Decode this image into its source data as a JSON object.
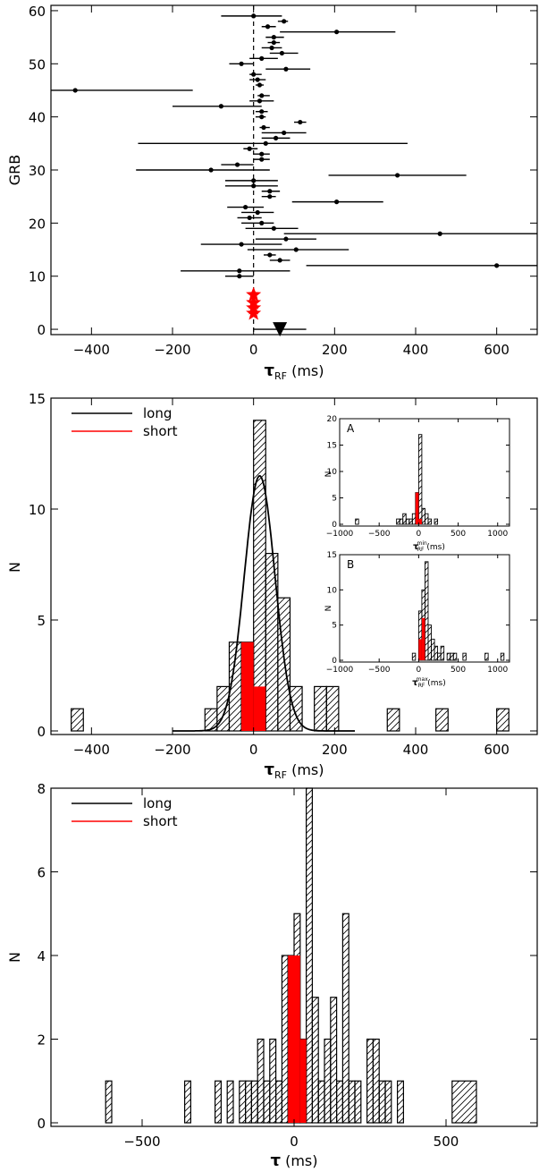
{
  "colors": {
    "long": "#000000",
    "short": "#ff0000",
    "frame": "#000000"
  },
  "chart_data": [
    {
      "id": "panel1",
      "type": "scatter",
      "xlabel_main": "τ",
      "xlabel_sub": "RF",
      "xlabel_unit": " (ms)",
      "ylabel": "GRB",
      "xlim": [
        -500,
        700
      ],
      "ylim": [
        -1,
        61
      ],
      "xticks": [
        -400,
        -200,
        0,
        200,
        400,
        600
      ],
      "yticks": [
        0,
        10,
        20,
        30,
        40,
        50,
        60
      ],
      "zero_line": "dashed",
      "long_points": [
        {
          "y": 59,
          "x": 0,
          "lo": -80,
          "hi": 70
        },
        {
          "y": 58,
          "x": 75,
          "lo": 60,
          "hi": 85
        },
        {
          "y": 57,
          "x": 35,
          "lo": 20,
          "hi": 55
        },
        {
          "y": 56,
          "x": 205,
          "lo": 65,
          "hi": 350
        },
        {
          "y": 55,
          "x": 50,
          "lo": 30,
          "hi": 75
        },
        {
          "y": 54,
          "x": 50,
          "lo": 35,
          "hi": 65
        },
        {
          "y": 53,
          "x": 45,
          "lo": 20,
          "hi": 70
        },
        {
          "y": 52,
          "x": 70,
          "lo": 40,
          "hi": 110
        },
        {
          "y": 51,
          "x": 20,
          "lo": -10,
          "hi": 60
        },
        {
          "y": 50,
          "x": -30,
          "lo": -60,
          "hi": 0
        },
        {
          "y": 49,
          "x": 80,
          "lo": 30,
          "hi": 140
        },
        {
          "y": 48,
          "x": 0,
          "lo": -10,
          "hi": 20
        },
        {
          "y": 47,
          "x": 10,
          "lo": -10,
          "hi": 30
        },
        {
          "y": 46,
          "x": 15,
          "lo": 5,
          "hi": 25
        },
        {
          "y": 45,
          "x": -440,
          "lo": -720,
          "hi": -150
        },
        {
          "y": 44,
          "x": 20,
          "lo": 10,
          "hi": 40
        },
        {
          "y": 43,
          "x": 15,
          "lo": -10,
          "hi": 50
        },
        {
          "y": 42,
          "x": -80,
          "lo": -200,
          "hi": 20
        },
        {
          "y": 41,
          "x": 20,
          "lo": 5,
          "hi": 35
        },
        {
          "y": 40,
          "x": 20,
          "lo": 5,
          "hi": 30
        },
        {
          "y": 39,
          "x": 115,
          "lo": 100,
          "hi": 130
        },
        {
          "y": 38,
          "x": 25,
          "lo": 15,
          "hi": 40
        },
        {
          "y": 37,
          "x": 75,
          "lo": 20,
          "hi": 130
        },
        {
          "y": 36,
          "x": 55,
          "lo": 20,
          "hi": 90
        },
        {
          "y": 35,
          "x": 30,
          "lo": -285,
          "hi": 380
        },
        {
          "y": 34,
          "x": -10,
          "lo": -25,
          "hi": 10
        },
        {
          "y": 33,
          "x": 20,
          "lo": 0,
          "hi": 40
        },
        {
          "y": 32,
          "x": 20,
          "lo": 0,
          "hi": 40
        },
        {
          "y": 31,
          "x": -40,
          "lo": -80,
          "hi": 0
        },
        {
          "y": 30,
          "x": -105,
          "lo": -290,
          "hi": 40
        },
        {
          "y": 29,
          "x": 355,
          "lo": 185,
          "hi": 525
        },
        {
          "y": 28,
          "x": 0,
          "lo": -70,
          "hi": 60
        },
        {
          "y": 27,
          "x": 0,
          "lo": -70,
          "hi": 60
        },
        {
          "y": 26,
          "x": 40,
          "lo": 20,
          "hi": 65
        },
        {
          "y": 25,
          "x": 40,
          "lo": 20,
          "hi": 55
        },
        {
          "y": 24,
          "x": 205,
          "lo": 95,
          "hi": 320
        },
        {
          "y": 23,
          "x": -20,
          "lo": -65,
          "hi": 25
        },
        {
          "y": 22,
          "x": 10,
          "lo": -30,
          "hi": 50
        },
        {
          "y": 21,
          "x": -10,
          "lo": -40,
          "hi": 20
        },
        {
          "y": 20,
          "x": 20,
          "lo": -30,
          "hi": 50
        },
        {
          "y": 19,
          "x": 50,
          "lo": -20,
          "hi": 110
        },
        {
          "y": 18,
          "x": 460,
          "lo": 75,
          "hi": 700
        },
        {
          "y": 17,
          "x": 80,
          "lo": 5,
          "hi": 155
        },
        {
          "y": 16,
          "x": -30,
          "lo": -130,
          "hi": 70
        },
        {
          "y": 15,
          "x": 105,
          "lo": -15,
          "hi": 235
        },
        {
          "y": 14,
          "x": 40,
          "lo": 25,
          "hi": 55
        },
        {
          "y": 13,
          "x": 65,
          "lo": 40,
          "hi": 90
        },
        {
          "y": 12,
          "x": 600,
          "lo": 130,
          "hi": 700
        },
        {
          "y": 11,
          "x": -35,
          "lo": -180,
          "hi": 90
        },
        {
          "y": 10,
          "x": -35,
          "lo": -70,
          "hi": 0
        }
      ],
      "short_points": [
        {
          "y": 6.5,
          "x": 0
        },
        {
          "y": 5,
          "x": 0
        },
        {
          "y": 4,
          "x": 0
        },
        {
          "y": 3,
          "x": 0
        }
      ],
      "arrow": {
        "y": 0,
        "x": 65,
        "lo": 0,
        "hi": 130
      }
    },
    {
      "id": "panel2",
      "type": "bar",
      "xlabel_main": "τ",
      "xlabel_sub": "RF",
      "xlabel_unit": " (ms)",
      "ylabel": "N",
      "xlim": [
        -500,
        700
      ],
      "ylim": [
        0,
        15
      ],
      "xticks": [
        -400,
        -200,
        0,
        200,
        400,
        600
      ],
      "yticks": [
        0,
        5,
        10,
        15
      ],
      "legend": [
        {
          "label": "long"
        },
        {
          "label": "short"
        }
      ],
      "long_bins": [
        {
          "x0": -450,
          "x1": -420,
          "n": 1
        },
        {
          "x0": -120,
          "x1": -90,
          "n": 1
        },
        {
          "x0": -90,
          "x1": -60,
          "n": 2
        },
        {
          "x0": -60,
          "x1": -30,
          "n": 4
        },
        {
          "x0": -30,
          "x1": 0,
          "n": 4
        },
        {
          "x0": 0,
          "x1": 30,
          "n": 14
        },
        {
          "x0": 30,
          "x1": 60,
          "n": 8
        },
        {
          "x0": 60,
          "x1": 90,
          "n": 6
        },
        {
          "x0": 90,
          "x1": 120,
          "n": 2
        },
        {
          "x0": 150,
          "x1": 180,
          "n": 2
        },
        {
          "x0": 180,
          "x1": 210,
          "n": 2
        },
        {
          "x0": 330,
          "x1": 360,
          "n": 1
        },
        {
          "x0": 450,
          "x1": 480,
          "n": 1
        },
        {
          "x0": 600,
          "x1": 630,
          "n": 1
        }
      ],
      "short_bins": [
        {
          "x0": -30,
          "x1": 0,
          "n": 4
        },
        {
          "x0": 0,
          "x1": 30,
          "n": 2
        }
      ],
      "gauss": {
        "mu": 15,
        "sigma": 38,
        "amp": 11.5
      },
      "insets": [
        {
          "id": "A",
          "label": "A",
          "xmain": "τ",
          "xsub": "RF",
          "xsup": "min",
          "xunit": " (ms)",
          "ylabel": "N",
          "xlim": [
            -1000,
            1150
          ],
          "ylim": [
            0,
            20
          ],
          "xticks": [
            -1000,
            -500,
            0,
            500,
            1000
          ],
          "yticks": [
            0,
            5,
            10,
            15,
            20
          ],
          "long_bins": [
            {
              "x0": -800,
              "x1": -760,
              "n": 1
            },
            {
              "x0": -280,
              "x1": -240,
              "n": 1
            },
            {
              "x0": -240,
              "x1": -200,
              "n": 1
            },
            {
              "x0": -200,
              "x1": -160,
              "n": 2
            },
            {
              "x0": -160,
              "x1": -120,
              "n": 1
            },
            {
              "x0": -120,
              "x1": -80,
              "n": 1
            },
            {
              "x0": -80,
              "x1": -40,
              "n": 2
            },
            {
              "x0": -40,
              "x1": 0,
              "n": 6
            },
            {
              "x0": 0,
              "x1": 40,
              "n": 17
            },
            {
              "x0": 40,
              "x1": 80,
              "n": 3
            },
            {
              "x0": 80,
              "x1": 120,
              "n": 2
            },
            {
              "x0": 120,
              "x1": 160,
              "n": 1
            },
            {
              "x0": 200,
              "x1": 240,
              "n": 1
            }
          ],
          "short_bins": [
            {
              "x0": -40,
              "x1": 0,
              "n": 6
            },
            {
              "x0": 0,
              "x1": 40,
              "n": 1
            }
          ]
        },
        {
          "id": "B",
          "label": "B",
          "xmain": "τ",
          "xsub": "RF",
          "xsup": "max",
          "xunit": " (ms)",
          "ylabel": "N",
          "xlim": [
            -1000,
            1150
          ],
          "ylim": [
            0,
            15
          ],
          "xticks": [
            -1000,
            -500,
            0,
            500,
            1000
          ],
          "yticks": [
            0,
            5,
            10,
            15
          ],
          "long_bins": [
            {
              "x0": -80,
              "x1": -40,
              "n": 1
            },
            {
              "x0": 0,
              "x1": 40,
              "n": 7
            },
            {
              "x0": 40,
              "x1": 80,
              "n": 10
            },
            {
              "x0": 80,
              "x1": 120,
              "n": 14
            },
            {
              "x0": 120,
              "x1": 160,
              "n": 5
            },
            {
              "x0": 160,
              "x1": 200,
              "n": 3
            },
            {
              "x0": 200,
              "x1": 240,
              "n": 2
            },
            {
              "x0": 240,
              "x1": 280,
              "n": 1
            },
            {
              "x0": 280,
              "x1": 320,
              "n": 2
            },
            {
              "x0": 360,
              "x1": 400,
              "n": 1
            },
            {
              "x0": 400,
              "x1": 440,
              "n": 1
            },
            {
              "x0": 440,
              "x1": 480,
              "n": 1
            },
            {
              "x0": 560,
              "x1": 600,
              "n": 1
            },
            {
              "x0": 840,
              "x1": 880,
              "n": 1
            },
            {
              "x0": 1040,
              "x1": 1080,
              "n": 1
            }
          ],
          "short_bins": [
            {
              "x0": 0,
              "x1": 40,
              "n": 3
            },
            {
              "x0": 40,
              "x1": 80,
              "n": 6
            }
          ]
        }
      ]
    },
    {
      "id": "panel3",
      "type": "bar",
      "xlabel_main": "τ",
      "xlabel_sub": "",
      "xlabel_unit": " (ms)",
      "ylabel": "N",
      "xlim": [
        -800,
        800
      ],
      "ylim": [
        0,
        8
      ],
      "xticks": [
        -500,
        0,
        500
      ],
      "yticks": [
        0,
        2,
        4,
        6,
        8
      ],
      "legend": [
        {
          "label": "long"
        },
        {
          "label": "short"
        }
      ],
      "long_bins": [
        {
          "x0": -620,
          "x1": -600,
          "n": 1
        },
        {
          "x0": -360,
          "x1": -340,
          "n": 1
        },
        {
          "x0": -260,
          "x1": -240,
          "n": 1
        },
        {
          "x0": -220,
          "x1": -200,
          "n": 1
        },
        {
          "x0": -180,
          "x1": -160,
          "n": 1
        },
        {
          "x0": -160,
          "x1": -140,
          "n": 1
        },
        {
          "x0": -140,
          "x1": -120,
          "n": 1
        },
        {
          "x0": -120,
          "x1": -100,
          "n": 2
        },
        {
          "x0": -100,
          "x1": -80,
          "n": 1
        },
        {
          "x0": -80,
          "x1": -60,
          "n": 2
        },
        {
          "x0": -60,
          "x1": -40,
          "n": 1
        },
        {
          "x0": -40,
          "x1": -20,
          "n": 4
        },
        {
          "x0": -20,
          "x1": 0,
          "n": 4
        },
        {
          "x0": 0,
          "x1": 20,
          "n": 5
        },
        {
          "x0": 20,
          "x1": 40,
          "n": 2
        },
        {
          "x0": 40,
          "x1": 60,
          "n": 8
        },
        {
          "x0": 60,
          "x1": 80,
          "n": 3
        },
        {
          "x0": 80,
          "x1": 100,
          "n": 1
        },
        {
          "x0": 100,
          "x1": 120,
          "n": 2
        },
        {
          "x0": 120,
          "x1": 140,
          "n": 3
        },
        {
          "x0": 140,
          "x1": 160,
          "n": 1
        },
        {
          "x0": 160,
          "x1": 180,
          "n": 5
        },
        {
          "x0": 180,
          "x1": 200,
          "n": 1
        },
        {
          "x0": 200,
          "x1": 220,
          "n": 1
        },
        {
          "x0": 240,
          "x1": 260,
          "n": 2
        },
        {
          "x0": 260,
          "x1": 280,
          "n": 2
        },
        {
          "x0": 280,
          "x1": 300,
          "n": 1
        },
        {
          "x0": 300,
          "x1": 320,
          "n": 1
        },
        {
          "x0": 340,
          "x1": 360,
          "n": 1
        },
        {
          "x0": 520,
          "x1": 600,
          "n": 1
        }
      ],
      "short_bins": [
        {
          "x0": -20,
          "x1": 0,
          "n": 4
        },
        {
          "x0": 0,
          "x1": 20,
          "n": 4
        },
        {
          "x0": 20,
          "x1": 40,
          "n": 2
        }
      ]
    }
  ]
}
